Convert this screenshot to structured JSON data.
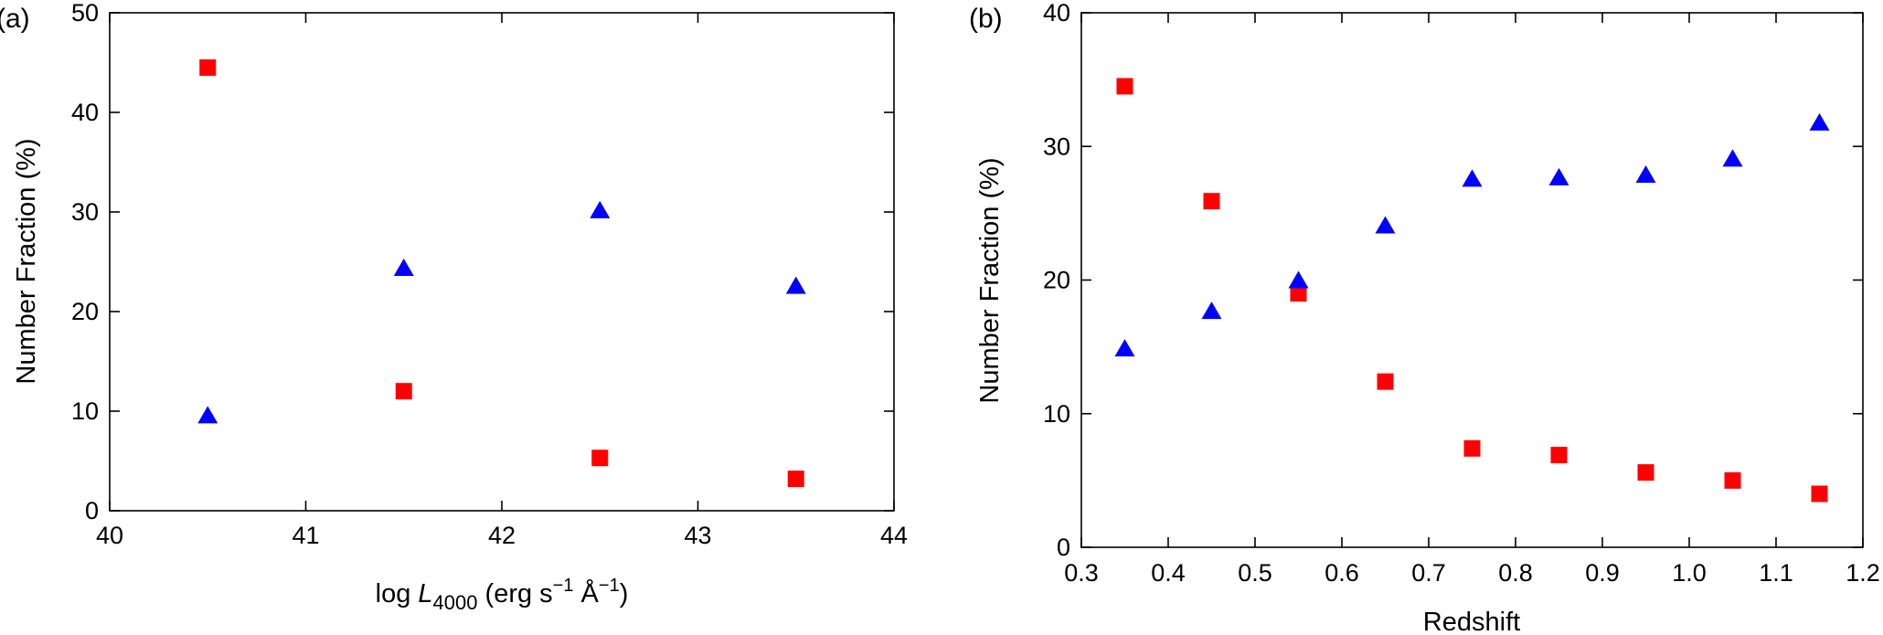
{
  "colors": {
    "square": "#ff0000",
    "triangle": "#0000ff"
  },
  "chart_data": [
    {
      "type": "scatter",
      "panel_label": "(a)",
      "xlabel": {
        "prefix": "log ",
        "var": "L",
        "sub": "4000",
        "units_a": " (erg s",
        "sup1": "−1",
        "units_b": " Å",
        "sup2": "−1",
        "units_c": ")"
      },
      "ylabel": "Number Fraction (%)",
      "xlim": [
        40,
        44
      ],
      "ylim": [
        0,
        50
      ],
      "xticks": [
        40,
        41,
        42,
        43,
        44
      ],
      "xtick_labels": [
        "40",
        "41",
        "42",
        "43",
        "44"
      ],
      "yticks": [
        0,
        10,
        20,
        30,
        40,
        50
      ],
      "ytick_labels": [
        "0",
        "10",
        "20",
        "30",
        "40",
        "50"
      ],
      "grid": false,
      "series": [
        {
          "marker": "square",
          "x": [
            40.5,
            41.5,
            42.5,
            43.5
          ],
          "y": [
            44.5,
            12.0,
            5.3,
            3.2
          ]
        },
        {
          "marker": "triangle",
          "x": [
            40.5,
            41.5,
            42.5,
            43.5
          ],
          "y": [
            9.6,
            24.4,
            30.2,
            22.6
          ]
        }
      ]
    },
    {
      "type": "scatter",
      "panel_label": "(b)",
      "xlabel": "Redshift",
      "ylabel": "Number Fraction (%)",
      "xlim": [
        0.3,
        1.2
      ],
      "ylim": [
        0,
        40
      ],
      "xticks": [
        0.3,
        0.4,
        0.5,
        0.6,
        0.7,
        0.8,
        0.9,
        1.0,
        1.1,
        1.2
      ],
      "xtick_labels": [
        "0.3",
        "0.4",
        "0.5",
        "0.6",
        "0.7",
        "0.8",
        "0.9",
        "1.0",
        "1.1",
        "1.2"
      ],
      "yticks": [
        0,
        10,
        20,
        30,
        40
      ],
      "ytick_labels": [
        "0",
        "10",
        "20",
        "30",
        "40"
      ],
      "grid": false,
      "series": [
        {
          "marker": "square",
          "x": [
            0.35,
            0.45,
            0.55,
            0.65,
            0.75,
            0.85,
            0.95,
            1.05,
            1.15
          ],
          "y": [
            34.5,
            25.9,
            19.0,
            12.4,
            7.4,
            6.9,
            5.6,
            5.0,
            4.0
          ]
        },
        {
          "marker": "triangle",
          "x": [
            0.35,
            0.45,
            0.55,
            0.65,
            0.75,
            0.85,
            0.95,
            1.05,
            1.15
          ],
          "y": [
            14.9,
            17.7,
            20.0,
            24.1,
            27.6,
            27.7,
            27.9,
            29.1,
            31.8
          ]
        }
      ]
    }
  ]
}
